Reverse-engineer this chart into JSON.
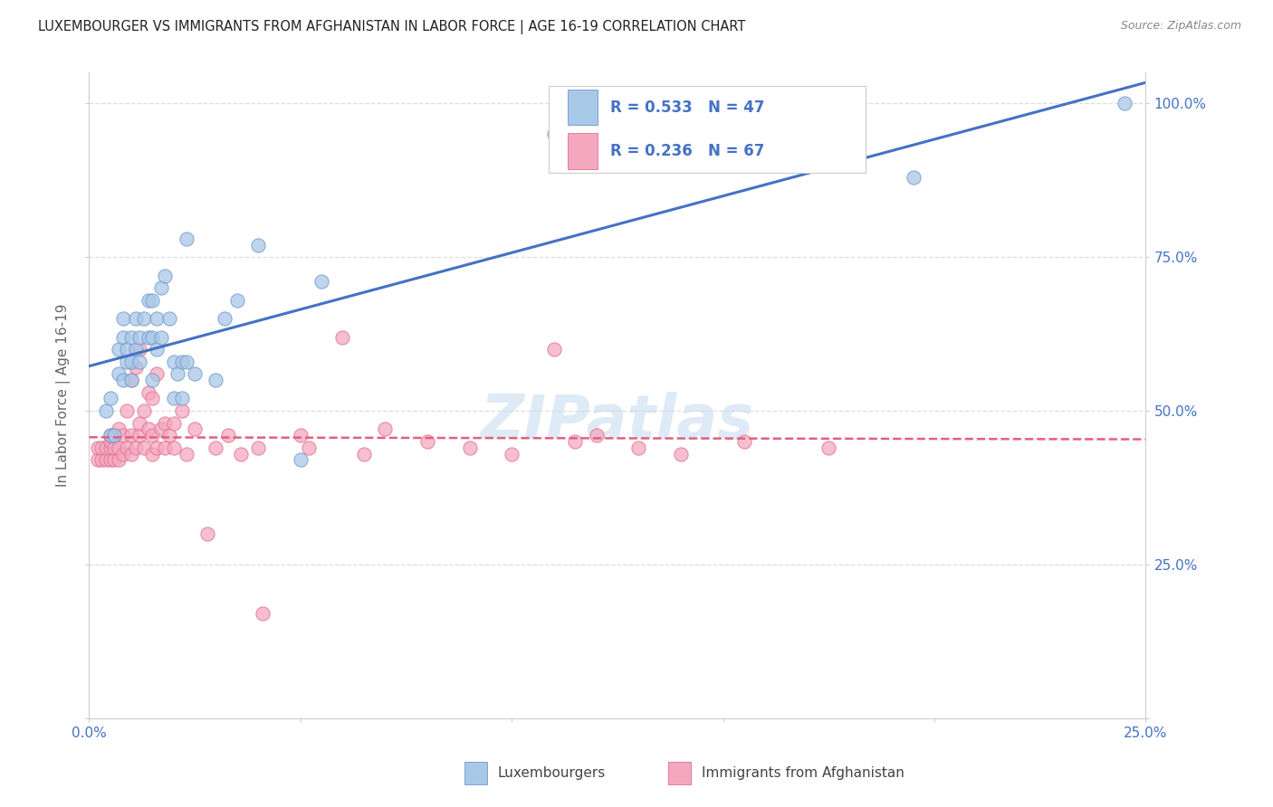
{
  "title": "LUXEMBOURGER VS IMMIGRANTS FROM AFGHANISTAN IN LABOR FORCE | AGE 16-19 CORRELATION CHART",
  "source": "Source: ZipAtlas.com",
  "ylabel": "In Labor Force | Age 16-19",
  "xlim": [
    0.0,
    0.25
  ],
  "ylim": [
    0.0,
    1.05
  ],
  "ytick_values": [
    0.0,
    0.25,
    0.5,
    0.75,
    1.0
  ],
  "xtick_values": [
    0.0,
    0.05,
    0.1,
    0.15,
    0.2,
    0.25
  ],
  "legend_r_blue": "R = 0.533",
  "legend_n_blue": "N = 47",
  "legend_r_pink": "R = 0.236",
  "legend_n_pink": "N = 67",
  "blue_color": "#a8c8e8",
  "pink_color": "#f4a8c0",
  "blue_edge_color": "#7098c8",
  "pink_edge_color": "#e07090",
  "blue_line_color": "#4472c4",
  "pink_line_color": "#e06080",
  "text_color": "#4472c4",
  "axis_label_color": "#666666",
  "watermark": "ZIPatlas",
  "watermark_color": "#c8ddf0",
  "grid_color": "#dddddd",
  "blue_scatter_x": [
    0.004,
    0.005,
    0.005,
    0.006,
    0.007,
    0.007,
    0.008,
    0.008,
    0.008,
    0.009,
    0.009,
    0.01,
    0.01,
    0.01,
    0.011,
    0.011,
    0.012,
    0.012,
    0.013,
    0.014,
    0.014,
    0.015,
    0.015,
    0.015,
    0.016,
    0.016,
    0.017,
    0.017,
    0.018,
    0.019,
    0.02,
    0.02,
    0.021,
    0.022,
    0.022,
    0.023,
    0.023,
    0.025,
    0.03,
    0.032,
    0.035,
    0.04,
    0.05,
    0.055,
    0.11,
    0.195,
    0.245
  ],
  "blue_scatter_y": [
    0.5,
    0.46,
    0.52,
    0.46,
    0.56,
    0.6,
    0.55,
    0.62,
    0.65,
    0.58,
    0.6,
    0.55,
    0.58,
    0.62,
    0.6,
    0.65,
    0.58,
    0.62,
    0.65,
    0.62,
    0.68,
    0.55,
    0.62,
    0.68,
    0.6,
    0.65,
    0.62,
    0.7,
    0.72,
    0.65,
    0.52,
    0.58,
    0.56,
    0.52,
    0.58,
    0.58,
    0.78,
    0.56,
    0.55,
    0.65,
    0.68,
    0.77,
    0.42,
    0.71,
    0.95,
    0.88,
    1.0
  ],
  "pink_scatter_x": [
    0.002,
    0.002,
    0.003,
    0.003,
    0.004,
    0.004,
    0.005,
    0.005,
    0.005,
    0.005,
    0.006,
    0.006,
    0.006,
    0.007,
    0.007,
    0.007,
    0.008,
    0.008,
    0.009,
    0.009,
    0.01,
    0.01,
    0.01,
    0.011,
    0.011,
    0.012,
    0.012,
    0.012,
    0.013,
    0.013,
    0.014,
    0.014,
    0.015,
    0.015,
    0.015,
    0.016,
    0.016,
    0.017,
    0.018,
    0.018,
    0.019,
    0.02,
    0.02,
    0.022,
    0.023,
    0.025,
    0.028,
    0.03,
    0.033,
    0.036,
    0.04,
    0.041,
    0.05,
    0.052,
    0.06,
    0.065,
    0.07,
    0.08,
    0.09,
    0.1,
    0.11,
    0.115,
    0.12,
    0.13,
    0.14,
    0.155,
    0.175
  ],
  "pink_scatter_y": [
    0.42,
    0.44,
    0.42,
    0.44,
    0.42,
    0.44,
    0.42,
    0.44,
    0.45,
    0.46,
    0.42,
    0.44,
    0.46,
    0.42,
    0.44,
    0.47,
    0.43,
    0.46,
    0.44,
    0.5,
    0.43,
    0.46,
    0.55,
    0.44,
    0.57,
    0.46,
    0.48,
    0.6,
    0.44,
    0.5,
    0.47,
    0.53,
    0.43,
    0.46,
    0.52,
    0.44,
    0.56,
    0.47,
    0.44,
    0.48,
    0.46,
    0.44,
    0.48,
    0.5,
    0.43,
    0.47,
    0.3,
    0.44,
    0.46,
    0.43,
    0.44,
    0.17,
    0.46,
    0.44,
    0.62,
    0.43,
    0.47,
    0.45,
    0.44,
    0.43,
    0.6,
    0.45,
    0.46,
    0.44,
    0.43,
    0.45,
    0.44
  ],
  "background_color": "#ffffff"
}
